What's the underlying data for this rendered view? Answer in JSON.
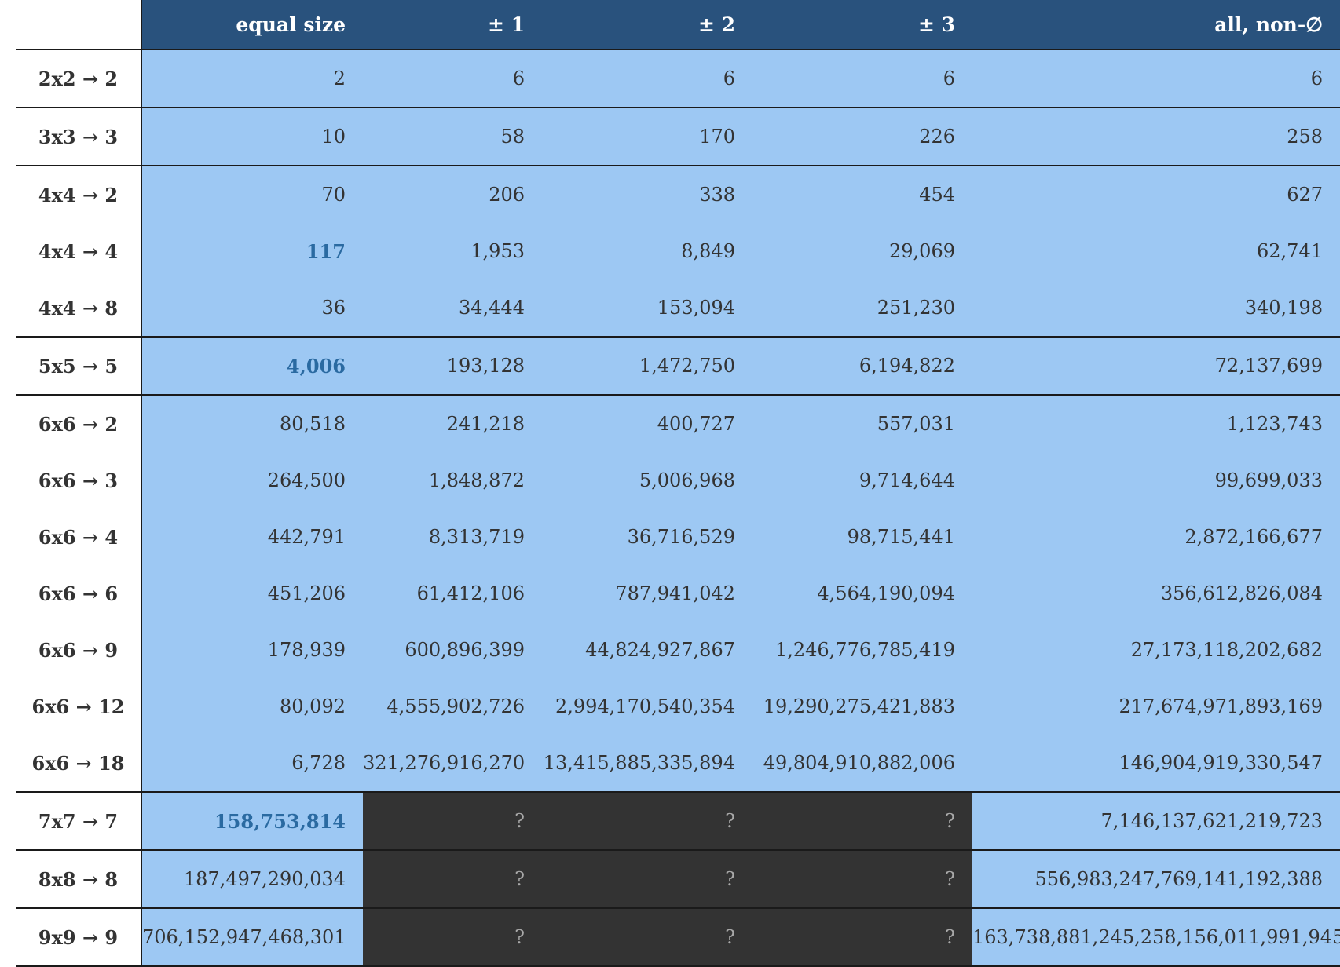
{
  "table": {
    "headers": [
      "",
      "equal size",
      "± 1",
      "± 2",
      "± 3",
      "all, non-∅"
    ],
    "rows": [
      {
        "label": "2x2 → 2",
        "values": [
          "2",
          "6",
          "6",
          "6",
          "6"
        ]
      },
      {
        "label": "3x3 → 3",
        "values": [
          "10",
          "58",
          "170",
          "226",
          "258"
        ]
      },
      {
        "label": "4x4 → 2",
        "values": [
          "70",
          "206",
          "338",
          "454",
          "627"
        ]
      },
      {
        "label": "4x4 → 4",
        "values": [
          "117",
          "1,953",
          "8,849",
          "29,069",
          "62,741"
        ]
      },
      {
        "label": "4x4 → 8",
        "values": [
          "36",
          "34,444",
          "153,094",
          "251,230",
          "340,198"
        ]
      },
      {
        "label": "5x5 → 5",
        "values": [
          "4,006",
          "193,128",
          "1,472,750",
          "6,194,822",
          "72,137,699"
        ]
      },
      {
        "label": "6x6 → 2",
        "values": [
          "80,518",
          "241,218",
          "400,727",
          "557,031",
          "1,123,743"
        ]
      },
      {
        "label": "6x6 → 3",
        "values": [
          "264,500",
          "1,848,872",
          "5,006,968",
          "9,714,644",
          "99,699,033"
        ]
      },
      {
        "label": "6x6 → 4",
        "values": [
          "442,791",
          "8,313,719",
          "36,716,529",
          "98,715,441",
          "2,872,166,677"
        ]
      },
      {
        "label": "6x6 → 6",
        "values": [
          "451,206",
          "61,412,106",
          "787,941,042",
          "4,564,190,094",
          "356,612,826,084"
        ]
      },
      {
        "label": "6x6 → 9",
        "values": [
          "178,939",
          "600,896,399",
          "44,824,927,867",
          "1,246,776,785,419",
          "27,173,118,202,682"
        ]
      },
      {
        "label": "6x6 → 12",
        "values": [
          "80,092",
          "4,555,902,726",
          "2,994,170,540,354",
          "19,290,275,421,883",
          "217,674,971,893,169"
        ]
      },
      {
        "label": "6x6 → 18",
        "values": [
          "6,728",
          "321,276,916,270",
          "13,415,885,335,894",
          "49,804,910,882,006",
          "146,904,919,330,547"
        ]
      },
      {
        "label": "7x7 → 7",
        "values": [
          "158,753,814",
          "?",
          "?",
          "?",
          "7,146,137,621,219,723"
        ]
      },
      {
        "label": "8x8 → 8",
        "values": [
          "187,497,290,034",
          "?",
          "?",
          "?",
          "556,983,247,769,141,192,388"
        ]
      },
      {
        "label": "9x9 → 9",
        "values": [
          "706,152,947,468,301",
          "?",
          "?",
          "?",
          "163,738,881,245,258,156,011,991,945"
        ]
      }
    ]
  },
  "colors": {
    "header_bg": "#29527d",
    "cell_bg": "#9dc8f3",
    "unknown_bg": "#333333",
    "highlight_text": "#2a6aa1"
  }
}
